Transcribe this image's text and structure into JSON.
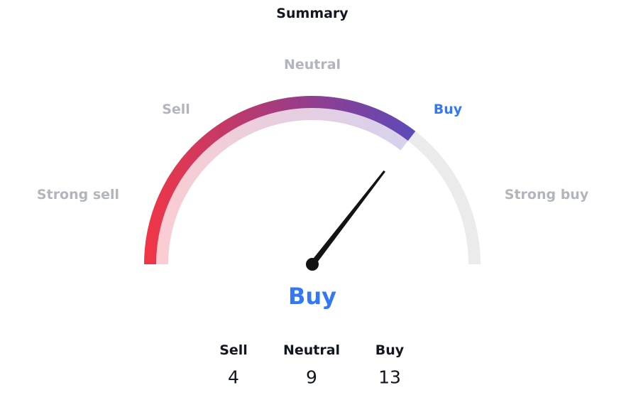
{
  "summary": {
    "title": "Summary",
    "scale_labels": {
      "strong_sell": "Strong sell",
      "sell": "Sell",
      "neutral": "Neutral",
      "buy": "Buy",
      "strong_buy": "Strong buy"
    },
    "active_label": "buy",
    "result": "Buy",
    "gauge": {
      "level_fraction": 0.71,
      "colors": {
        "start": "#f23645",
        "middle": "#9c3f8a",
        "end": "#5e4ab8",
        "track": "#ebebeb",
        "active_text": "#3179f5",
        "inactive_text": "#b2b5be",
        "needle": "#131313"
      }
    },
    "counts": [
      {
        "label": "Sell",
        "value": "4"
      },
      {
        "label": "Neutral",
        "value": "9"
      },
      {
        "label": "Buy",
        "value": "13"
      }
    ]
  }
}
